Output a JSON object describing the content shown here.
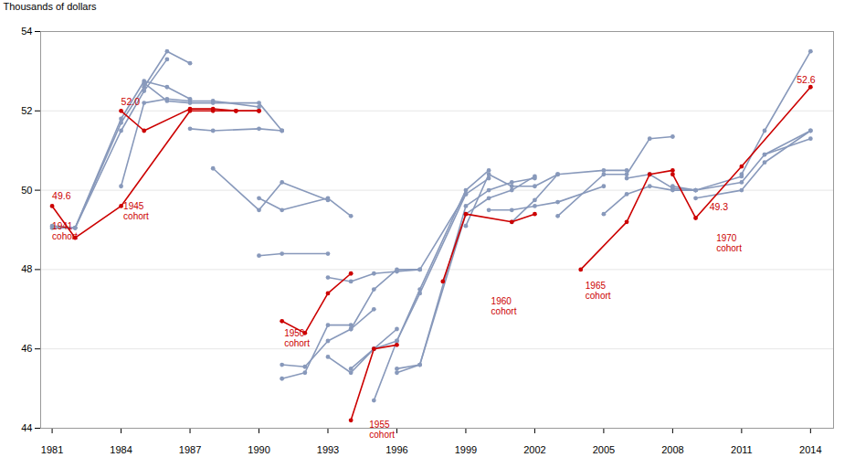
{
  "chart_data": {
    "type": "line",
    "ylabel": "Thousands of dollars",
    "xlim": [
      1980.5,
      2015.0
    ],
    "ylim": [
      44,
      54
    ],
    "xticks": [
      1981,
      1984,
      1987,
      1990,
      1993,
      1996,
      1999,
      2002,
      2005,
      2008,
      2011,
      2014
    ],
    "yticks": [
      44,
      46,
      48,
      50,
      52,
      54
    ],
    "grid": "y",
    "series": [
      {
        "color": "#8899BB",
        "marker": "circle",
        "x": [
          1981,
          1982,
          1984,
          1985,
          1986
        ],
        "values": [
          49.1,
          49.05,
          51.5,
          52.5,
          53.3
        ]
      },
      {
        "color": "#8899BB",
        "marker": "circle",
        "x": [
          1981,
          1982,
          1984,
          1985,
          1986,
          1987
        ],
        "values": [
          49.05,
          49.05,
          51.7,
          52.6,
          53.5,
          53.2
        ]
      },
      {
        "color": "#8899BB",
        "marker": "circle",
        "x": [
          1982,
          1984,
          1985,
          1986,
          1987
        ],
        "values": [
          49.05,
          51.8,
          52.75,
          52.6,
          52.3
        ]
      },
      {
        "color": "#8899BB",
        "marker": "circle",
        "x": [
          1984,
          1985,
          1986,
          1987,
          1988,
          1990
        ],
        "values": [
          50.1,
          52.2,
          52.3,
          52.25,
          52.25,
          52.1
        ]
      },
      {
        "color": "#8899BB",
        "marker": "circle",
        "x": [
          1985,
          1986,
          1987,
          1988,
          1990,
          1991
        ],
        "values": [
          52.7,
          52.25,
          52.2,
          52.2,
          52.2,
          51.5
        ]
      },
      {
        "color": "#8899BB",
        "marker": "circle",
        "x": [
          1987,
          1988,
          1990,
          1991
        ],
        "values": [
          51.55,
          51.5,
          51.55,
          51.5
        ]
      },
      {
        "color": "#8899BB",
        "marker": "circle",
        "x": [
          1988,
          1990,
          1991,
          1993
        ],
        "values": [
          50.55,
          49.5,
          50.2,
          49.75
        ]
      },
      {
        "color": "#8899BB",
        "marker": "circle",
        "x": [
          1990,
          1991,
          1993
        ],
        "values": [
          48.35,
          48.4,
          48.4
        ]
      },
      {
        "color": "#8899BB",
        "marker": "circle",
        "x": [
          1990,
          1991,
          1993,
          1994
        ],
        "values": [
          49.8,
          49.5,
          49.8,
          49.35
        ]
      },
      {
        "color": "#8899BB",
        "marker": "circle",
        "x": [
          1991,
          1992,
          1993,
          1994
        ],
        "values": [
          45.25,
          45.4,
          46.6,
          46.6
        ]
      },
      {
        "color": "#8899BB",
        "marker": "circle",
        "x": [
          1991,
          1992,
          1993,
          1994,
          1995
        ],
        "values": [
          45.6,
          45.55,
          46.2,
          46.5,
          47.0
        ]
      },
      {
        "color": "#8899BB",
        "marker": "circle",
        "x": [
          1993,
          1994,
          1995,
          1996
        ],
        "values": [
          45.8,
          45.4,
          46.0,
          46.5
        ]
      },
      {
        "color": "#8899BB",
        "marker": "circle",
        "x": [
          1993,
          1994,
          1995,
          1996,
          1997
        ],
        "values": [
          47.8,
          47.7,
          47.9,
          47.95,
          48.0
        ]
      },
      {
        "color": "#8899BB",
        "marker": "circle",
        "x": [
          1994,
          1995,
          1996,
          1997,
          1999
        ],
        "values": [
          46.5,
          47.5,
          48.0,
          48.0,
          49.9
        ]
      },
      {
        "color": "#8899BB",
        "marker": "circle",
        "x": [
          1994,
          1995,
          1996,
          1997,
          1999,
          2000
        ],
        "values": [
          45.5,
          46.0,
          46.2,
          47.5,
          50.0,
          50.5
        ]
      },
      {
        "color": "#8899BB",
        "marker": "circle",
        "x": [
          1995,
          1996,
          1997,
          1999,
          2000
        ],
        "values": [
          44.7,
          46.2,
          47.4,
          49.9,
          50.3
        ]
      },
      {
        "color": "#8899BB",
        "marker": "circle",
        "x": [
          1996,
          1997,
          1999,
          2000,
          2001,
          2002
        ],
        "values": [
          45.4,
          45.6,
          49.4,
          49.8,
          50.0,
          50.35
        ]
      },
      {
        "color": "#8899BB",
        "marker": "circle",
        "x": [
          1996,
          1997,
          1999,
          2000,
          2001,
          2002
        ],
        "values": [
          45.5,
          45.6,
          49.6,
          50.0,
          50.2,
          50.3
        ]
      },
      {
        "color": "#8899BB",
        "marker": "circle",
        "x": [
          1999,
          2000,
          2001,
          2002,
          2003
        ],
        "values": [
          49.1,
          50.4,
          50.1,
          50.1,
          50.4
        ]
      },
      {
        "color": "#8899BB",
        "marker": "circle",
        "x": [
          2000,
          2001,
          2002,
          2003,
          2005
        ],
        "values": [
          49.5,
          49.5,
          49.6,
          49.7,
          50.1
        ]
      },
      {
        "color": "#8899BB",
        "marker": "circle",
        "x": [
          2001,
          2002,
          2003,
          2005,
          2006
        ],
        "values": [
          49.2,
          49.75,
          50.4,
          50.5,
          50.5
        ]
      },
      {
        "color": "#8899BB",
        "marker": "circle",
        "x": [
          2003,
          2005,
          2006,
          2007,
          2008
        ],
        "values": [
          49.35,
          50.4,
          50.4,
          51.3,
          51.35
        ]
      },
      {
        "color": "#8899BB",
        "marker": "circle",
        "x": [
          2005,
          2006,
          2007,
          2008,
          2009
        ],
        "values": [
          49.4,
          49.9,
          50.1,
          50.0,
          50.0
        ]
      },
      {
        "color": "#8899BB",
        "marker": "circle",
        "x": [
          2006,
          2007,
          2008,
          2009,
          2011
        ],
        "values": [
          50.3,
          50.4,
          50.05,
          50.0,
          50.35
        ]
      },
      {
        "color": "#8899BB",
        "marker": "circle",
        "x": [
          2008,
          2009,
          2011,
          2012,
          2014
        ],
        "values": [
          50.1,
          50.0,
          50.2,
          50.9,
          51.5
        ]
      },
      {
        "color": "#8899BB",
        "marker": "circle",
        "x": [
          2009,
          2011,
          2012,
          2014
        ],
        "values": [
          49.8,
          50.0,
          50.7,
          51.5
        ]
      },
      {
        "color": "#8899BB",
        "marker": "circle",
        "x": [
          2011,
          2012,
          2014
        ],
        "values": [
          50.4,
          51.5,
          53.5
        ]
      },
      {
        "color": "#8899BB",
        "marker": "circle",
        "x": [
          2012,
          2014
        ],
        "values": [
          50.9,
          51.3
        ]
      },
      {
        "color": "#CC0000",
        "marker": "circle",
        "x": [
          1981,
          1982,
          1984,
          1987,
          1988,
          1989,
          1990
        ],
        "values": [
          49.6,
          48.8,
          49.6,
          52.0,
          52.0,
          52.0,
          52.0
        ]
      },
      {
        "color": "#CC0000",
        "marker": "circle",
        "x": [
          1984,
          1985,
          1987,
          1988,
          1989,
          1990
        ],
        "values": [
          52.0,
          51.5,
          52.05,
          52.05,
          52.0,
          52.0
        ]
      },
      {
        "color": "#CC0000",
        "marker": "circle",
        "x": [
          1991,
          1992,
          1993,
          1994
        ],
        "values": [
          46.7,
          46.4,
          47.4,
          47.9
        ]
      },
      {
        "color": "#CC0000",
        "marker": "circle",
        "x": [
          1994,
          1995,
          1996
        ],
        "values": [
          44.2,
          46.0,
          46.1
        ]
      },
      {
        "color": "#CC0000",
        "marker": "circle",
        "x": [
          1998,
          1999,
          2001,
          2002
        ],
        "values": [
          47.7,
          49.4,
          49.2,
          49.4
        ]
      },
      {
        "color": "#CC0000",
        "marker": "circle",
        "x": [
          2004,
          2006,
          2007,
          2008
        ],
        "values": [
          48.0,
          49.2,
          50.4,
          50.5
        ]
      },
      {
        "color": "#CC0000",
        "marker": "circle",
        "x": [
          2008,
          2009,
          2011,
          2014
        ],
        "values": [
          50.4,
          49.3,
          50.6,
          52.6
        ]
      }
    ],
    "cohort_labels": [
      {
        "text": "1941\ncohort",
        "x": 1981.0,
        "y": 49.2,
        "color": "#CC0000"
      },
      {
        "text": "1945\ncohort",
        "x": 1984.1,
        "y": 49.7,
        "color": "#CC0000"
      },
      {
        "text": "1950\ncohort",
        "x": 1991.1,
        "y": 46.5,
        "color": "#CC0000"
      },
      {
        "text": "1955\ncohort",
        "x": 1994.8,
        "y": 44.2,
        "color": "#CC0000"
      },
      {
        "text": "1960\ncohort",
        "x": 2000.1,
        "y": 47.3,
        "color": "#CC0000"
      },
      {
        "text": "1965\ncohort",
        "x": 2004.2,
        "y": 47.7,
        "color": "#CC0000"
      },
      {
        "text": "1970\ncohort",
        "x": 2009.9,
        "y": 48.9,
        "color": "#CC0000"
      }
    ],
    "annotations": [
      {
        "text": "49.6",
        "x": 1981.0,
        "y": 49.78,
        "color": "#CC0000"
      },
      {
        "text": "52.0",
        "x": 1984.0,
        "y": 52.15,
        "color": "#CC0000"
      },
      {
        "text": "49.3",
        "x": 2009.6,
        "y": 49.5,
        "color": "#CC0000"
      },
      {
        "text": "52.6",
        "x": 2013.4,
        "y": 52.7,
        "color": "#CC0000"
      }
    ]
  }
}
